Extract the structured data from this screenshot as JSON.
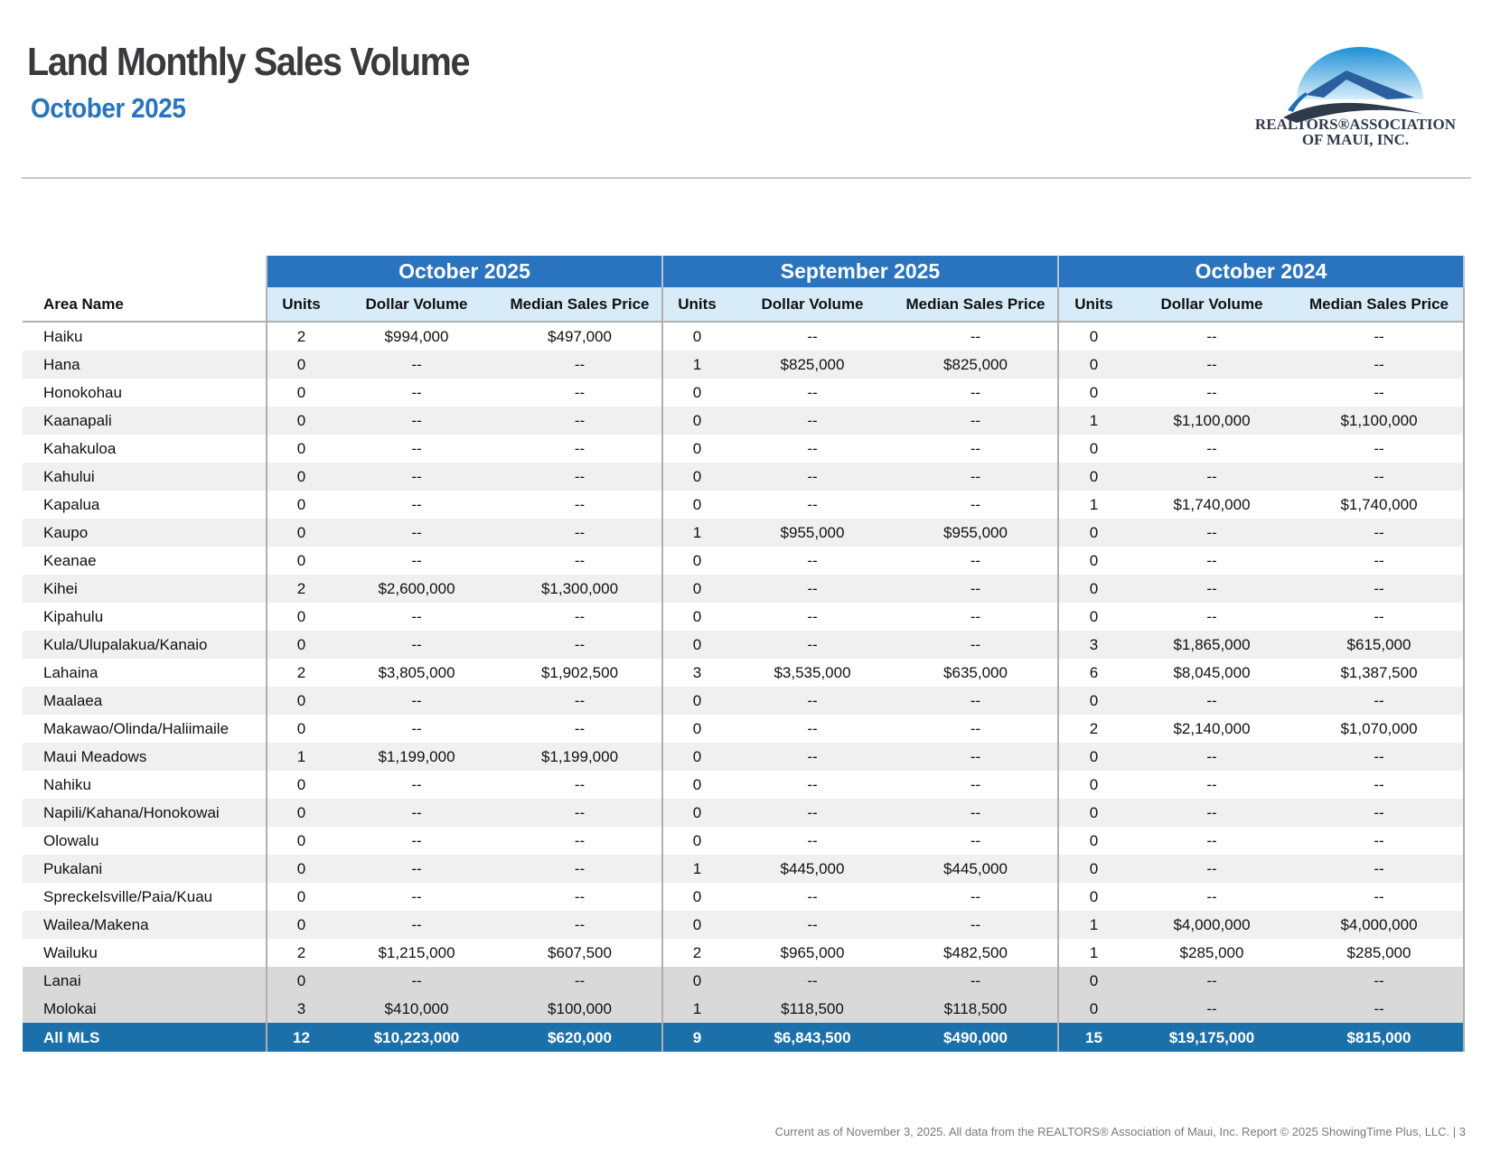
{
  "header": {
    "title": "Land Monthly Sales Volume",
    "subtitle": "October 2025"
  },
  "logo": {
    "line1": "REALTORS®ASSOCIATION",
    "line2": "OF MAUI, INC."
  },
  "table": {
    "area_header": "Area Name",
    "groups": [
      "October 2025",
      "September 2025",
      "October 2024"
    ],
    "columns": [
      "Units",
      "Dollar Volume",
      "Median Sales Price"
    ],
    "rows": [
      [
        "Haiku",
        "2",
        "$994,000",
        "$497,000",
        "0",
        "--",
        "--",
        "0",
        "--",
        "--"
      ],
      [
        "Hana",
        "0",
        "--",
        "--",
        "1",
        "$825,000",
        "$825,000",
        "0",
        "--",
        "--"
      ],
      [
        "Honokohau",
        "0",
        "--",
        "--",
        "0",
        "--",
        "--",
        "0",
        "--",
        "--"
      ],
      [
        "Kaanapali",
        "0",
        "--",
        "--",
        "0",
        "--",
        "--",
        "1",
        "$1,100,000",
        "$1,100,000"
      ],
      [
        "Kahakuloa",
        "0",
        "--",
        "--",
        "0",
        "--",
        "--",
        "0",
        "--",
        "--"
      ],
      [
        "Kahului",
        "0",
        "--",
        "--",
        "0",
        "--",
        "--",
        "0",
        "--",
        "--"
      ],
      [
        "Kapalua",
        "0",
        "--",
        "--",
        "0",
        "--",
        "--",
        "1",
        "$1,740,000",
        "$1,740,000"
      ],
      [
        "Kaupo",
        "0",
        "--",
        "--",
        "1",
        "$955,000",
        "$955,000",
        "0",
        "--",
        "--"
      ],
      [
        "Keanae",
        "0",
        "--",
        "--",
        "0",
        "--",
        "--",
        "0",
        "--",
        "--"
      ],
      [
        "Kihei",
        "2",
        "$2,600,000",
        "$1,300,000",
        "0",
        "--",
        "--",
        "0",
        "--",
        "--"
      ],
      [
        "Kipahulu",
        "0",
        "--",
        "--",
        "0",
        "--",
        "--",
        "0",
        "--",
        "--"
      ],
      [
        "Kula/Ulupalakua/Kanaio",
        "0",
        "--",
        "--",
        "0",
        "--",
        "--",
        "3",
        "$1,865,000",
        "$615,000"
      ],
      [
        "Lahaina",
        "2",
        "$3,805,000",
        "$1,902,500",
        "3",
        "$3,535,000",
        "$635,000",
        "6",
        "$8,045,000",
        "$1,387,500"
      ],
      [
        "Maalaea",
        "0",
        "--",
        "--",
        "0",
        "--",
        "--",
        "0",
        "--",
        "--"
      ],
      [
        "Makawao/Olinda/Haliimaile",
        "0",
        "--",
        "--",
        "0",
        "--",
        "--",
        "2",
        "$2,140,000",
        "$1,070,000"
      ],
      [
        "Maui Meadows",
        "1",
        "$1,199,000",
        "$1,199,000",
        "0",
        "--",
        "--",
        "0",
        "--",
        "--"
      ],
      [
        "Nahiku",
        "0",
        "--",
        "--",
        "0",
        "--",
        "--",
        "0",
        "--",
        "--"
      ],
      [
        "Napili/Kahana/Honokowai",
        "0",
        "--",
        "--",
        "0",
        "--",
        "--",
        "0",
        "--",
        "--"
      ],
      [
        "Olowalu",
        "0",
        "--",
        "--",
        "0",
        "--",
        "--",
        "0",
        "--",
        "--"
      ],
      [
        "Pukalani",
        "0",
        "--",
        "--",
        "1",
        "$445,000",
        "$445,000",
        "0",
        "--",
        "--"
      ],
      [
        "Spreckelsville/Paia/Kuau",
        "0",
        "--",
        "--",
        "0",
        "--",
        "--",
        "0",
        "--",
        "--"
      ],
      [
        "Wailea/Makena",
        "0",
        "--",
        "--",
        "0",
        "--",
        "--",
        "1",
        "$4,000,000",
        "$4,000,000"
      ],
      [
        "Wailuku",
        "2",
        "$1,215,000",
        "$607,500",
        "2",
        "$965,000",
        "$482,500",
        "1",
        "$285,000",
        "$285,000"
      ]
    ],
    "island_rows": [
      [
        "Lanai",
        "0",
        "--",
        "--",
        "0",
        "--",
        "--",
        "0",
        "--",
        "--"
      ],
      [
        "Molokai",
        "3",
        "$410,000",
        "$100,000",
        "1",
        "$118,500",
        "$118,500",
        "0",
        "--",
        "--"
      ]
    ],
    "total": [
      "All MLS",
      "12",
      "$10,223,000",
      "$620,000",
      "9",
      "$6,843,500",
      "$490,000",
      "15",
      "$19,175,000",
      "$815,000"
    ]
  },
  "footer": "Current as of November 3, 2025. All data from the REALTORS® Association of Maui, Inc. Report © 2025 ShowingTime Plus, LLC.  |  3"
}
